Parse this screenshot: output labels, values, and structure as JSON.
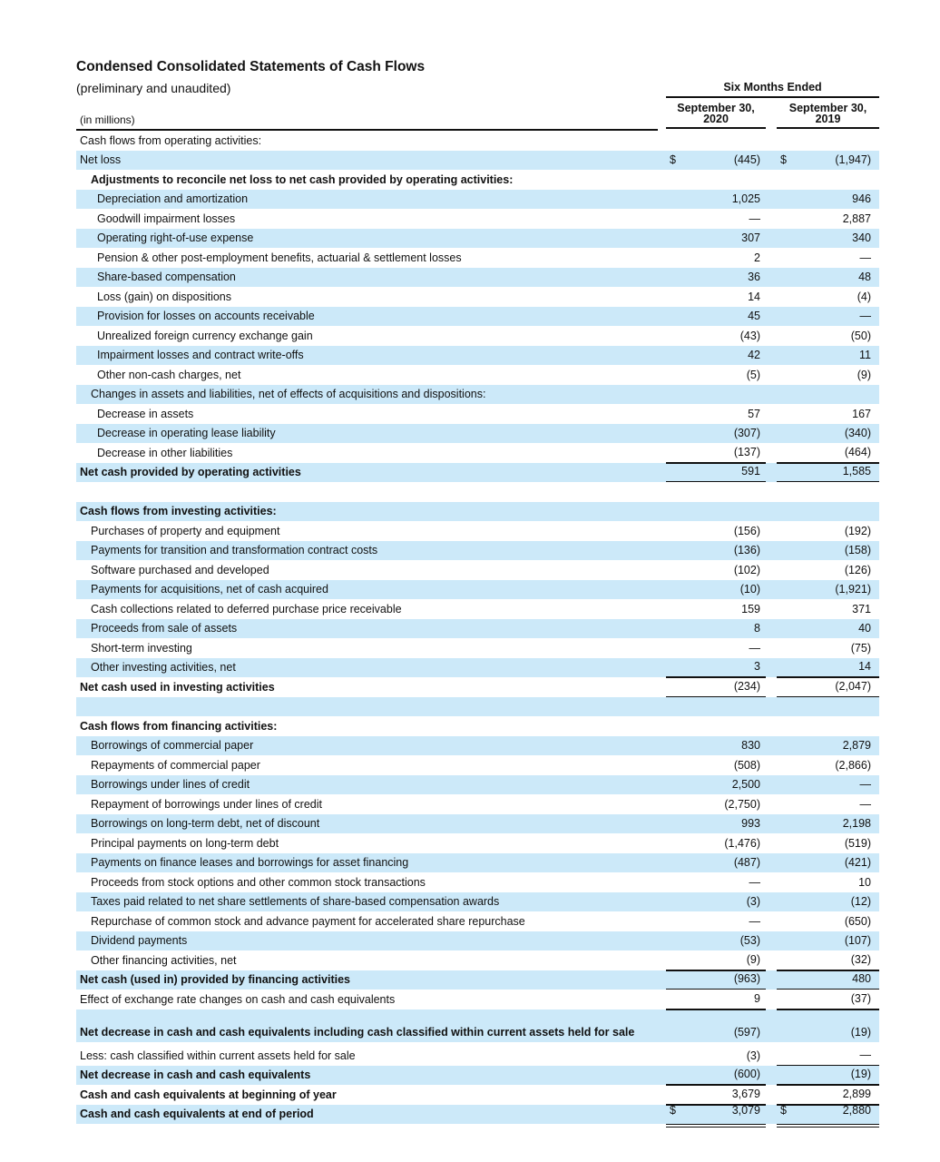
{
  "title": "Condensed Consolidated Statements of Cash Flows",
  "subtitle": "(preliminary and unaudited)",
  "units": "(in millions)",
  "period_header": "Six Months Ended",
  "columns": [
    {
      "line1": "September 30,",
      "line2": "2020"
    },
    {
      "line1": "September 30,",
      "line2": "2019"
    }
  ],
  "colors": {
    "shade": "#cce9f9"
  },
  "rows": [
    {
      "label": "Cash flows from operating activities:",
      "indent": 0,
      "bold": false,
      "v1": "",
      "v2": ""
    },
    {
      "label": "Net loss",
      "indent": 0,
      "bold": false,
      "d1": "$",
      "v1": "(445)",
      "d2": "$",
      "v2": "(1,947)"
    },
    {
      "label": "Adjustments to reconcile net loss to net cash provided by operating activities:",
      "indent": 1,
      "bold": true,
      "v1": "",
      "v2": ""
    },
    {
      "label": "Depreciation and amortization",
      "indent": 2,
      "v1": "1,025",
      "v2": "946"
    },
    {
      "label": "Goodwill impairment losses",
      "indent": 2,
      "v1": "—",
      "v2": "2,887"
    },
    {
      "label": "Operating right-of-use expense",
      "indent": 2,
      "v1": "307",
      "v2": "340"
    },
    {
      "label": "Pension & other post-employment benefits, actuarial & settlement losses",
      "indent": 2,
      "v1": "2",
      "v2": "—"
    },
    {
      "label": "Share-based compensation",
      "indent": 2,
      "v1": "36",
      "v2": "48"
    },
    {
      "label": "Loss (gain) on dispositions",
      "indent": 2,
      "v1": "14",
      "v2": "(4)"
    },
    {
      "label": "Provision for losses on accounts receivable",
      "indent": 2,
      "v1": "45",
      "v2": "—"
    },
    {
      "label": "Unrealized foreign currency exchange gain",
      "indent": 2,
      "v1": "(43)",
      "v2": "(50)"
    },
    {
      "label": "Impairment losses and contract write-offs",
      "indent": 2,
      "v1": "42",
      "v2": "11"
    },
    {
      "label": "Other non-cash charges, net",
      "indent": 2,
      "v1": "(5)",
      "v2": "(9)"
    },
    {
      "label": "Changes in assets and liabilities, net of effects of acquisitions and dispositions:",
      "indent": 1,
      "v1": "",
      "v2": ""
    },
    {
      "label": "Decrease in assets",
      "indent": 2,
      "v1": "57",
      "v2": "167"
    },
    {
      "label": "Decrease in operating lease liability",
      "indent": 2,
      "v1": "(307)",
      "v2": "(340)"
    },
    {
      "label": "Decrease in other liabilities",
      "indent": 2,
      "v1": "(137)",
      "v2": "(464)"
    },
    {
      "label": "Net cash provided by operating activities",
      "indent": 0,
      "bold": true,
      "v1": "591",
      "v2": "1,585"
    },
    {
      "label": "",
      "indent": 0,
      "v1": "",
      "v2": ""
    },
    {
      "label": "Cash flows from investing activities:",
      "indent": 0,
      "bold": true,
      "v1": "",
      "v2": ""
    },
    {
      "label": "Purchases of property and equipment",
      "indent": 1,
      "v1": "(156)",
      "v2": "(192)"
    },
    {
      "label": "Payments for transition and transformation contract costs",
      "indent": 1,
      "v1": "(136)",
      "v2": "(158)"
    },
    {
      "label": "Software purchased and developed",
      "indent": 1,
      "v1": "(102)",
      "v2": "(126)"
    },
    {
      "label": "Payments for acquisitions, net of cash acquired",
      "indent": 1,
      "v1": "(10)",
      "v2": "(1,921)"
    },
    {
      "label": "Cash collections related to deferred purchase price receivable",
      "indent": 1,
      "v1": "159",
      "v2": "371"
    },
    {
      "label": "Proceeds from sale of assets",
      "indent": 1,
      "v1": "8",
      "v2": "40"
    },
    {
      "label": "Short-term investing",
      "indent": 1,
      "v1": "—",
      "v2": "(75)"
    },
    {
      "label": "Other investing activities, net",
      "indent": 1,
      "v1": "3",
      "v2": "14"
    },
    {
      "label": "Net cash used in investing activities",
      "indent": 0,
      "bold": true,
      "v1": "(234)",
      "v2": "(2,047)"
    },
    {
      "label": "",
      "indent": 0,
      "v1": "",
      "v2": ""
    },
    {
      "label": "Cash flows from financing activities:",
      "indent": 0,
      "bold": true,
      "v1": "",
      "v2": ""
    },
    {
      "label": "Borrowings of commercial paper",
      "indent": 1,
      "v1": "830",
      "v2": "2,879"
    },
    {
      "label": "Repayments of commercial paper",
      "indent": 1,
      "v1": "(508)",
      "v2": "(2,866)"
    },
    {
      "label": "Borrowings under lines of credit",
      "indent": 1,
      "v1": "2,500",
      "v2": "—"
    },
    {
      "label": "Repayment of borrowings under lines of credit",
      "indent": 1,
      "v1": "(2,750)",
      "v2": "—"
    },
    {
      "label": "Borrowings on long-term debt, net of discount",
      "indent": 1,
      "v1": "993",
      "v2": "2,198"
    },
    {
      "label": "Principal payments on long-term debt",
      "indent": 1,
      "v1": "(1,476)",
      "v2": "(519)"
    },
    {
      "label": "Payments on finance leases and borrowings for asset financing",
      "indent": 1,
      "v1": "(487)",
      "v2": "(421)"
    },
    {
      "label": "Proceeds from stock options and other common stock transactions",
      "indent": 1,
      "v1": "—",
      "v2": "10"
    },
    {
      "label": "Taxes paid related to net share settlements of share-based compensation awards",
      "indent": 1,
      "v1": "(3)",
      "v2": "(12)"
    },
    {
      "label": "Repurchase of common stock and advance payment for accelerated share repurchase",
      "indent": 1,
      "v1": "—",
      "v2": "(650)"
    },
    {
      "label": "Dividend payments",
      "indent": 1,
      "v1": "(53)",
      "v2": "(107)"
    },
    {
      "label": "Other financing activities, net",
      "indent": 1,
      "v1": "(9)",
      "v2": "(32)"
    },
    {
      "label": "Net cash (used in) provided by financing activities",
      "indent": 0,
      "bold": true,
      "v1": "(963)",
      "v2": "480"
    },
    {
      "label": "Effect of exchange rate changes on cash and cash equivalents",
      "indent": 0,
      "v1": "9",
      "v2": "(37)"
    },
    {
      "label": "Net decrease in cash and cash equivalents including cash classified within current assets held for sale",
      "indent": 0,
      "bold": true,
      "v1": "(597)",
      "v2": "(19)"
    },
    {
      "label": "Less: cash classified within current assets held for sale",
      "indent": 0,
      "v1": "(3)",
      "v2": "—"
    },
    {
      "label": "Net decrease in cash and cash equivalents",
      "indent": 0,
      "bold": true,
      "v1": "(600)",
      "v2": "(19)"
    },
    {
      "label": "Cash and cash equivalents at beginning of year",
      "indent": 0,
      "bold": true,
      "v1": "3,679",
      "v2": "2,899"
    },
    {
      "label": "Cash and cash equivalents at end of period",
      "indent": 0,
      "bold": true,
      "d1": "$",
      "v1": "3,079",
      "d2": "$",
      "v2": "2,880"
    }
  ]
}
